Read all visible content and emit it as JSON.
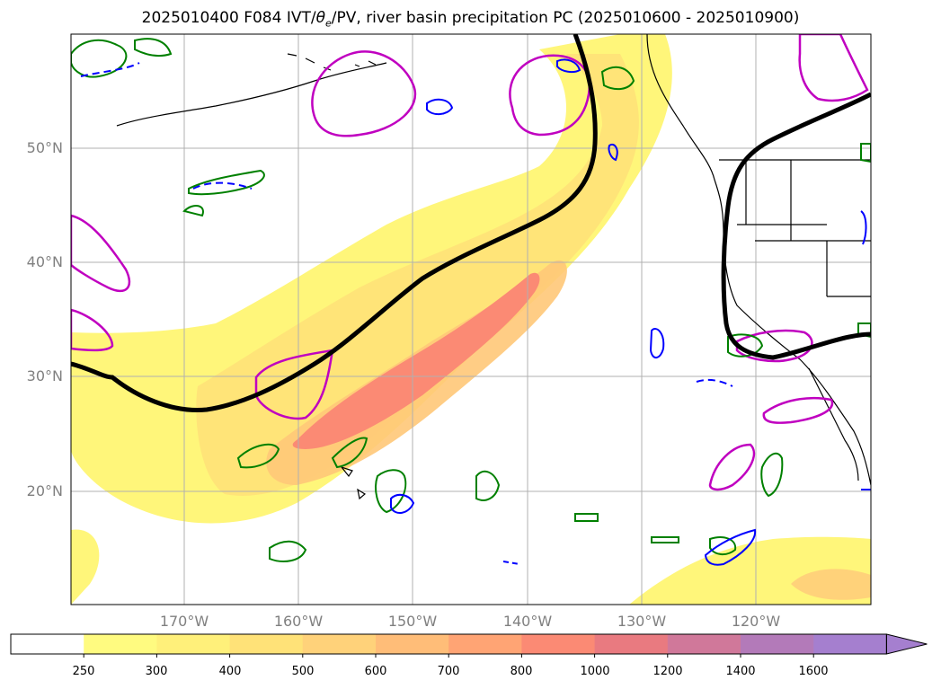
{
  "title": {
    "prefix": "2025010400 F084 IVT/",
    "theta_symbol": "θ",
    "theta_sub": "e",
    "suffix": "/PV, river basin precipitation PC (2025010600 - 2025010900)"
  },
  "lat_labels": [
    "50°N",
    "40°N",
    "30°N",
    "20°N"
  ],
  "lon_labels": [
    "170°W",
    "160°W",
    "150°W",
    "140°W",
    "130°W",
    "120°W"
  ],
  "colorbar": {
    "levels": [
      "250",
      "300",
      "400",
      "500",
      "600",
      "700",
      "800",
      "1000",
      "1200",
      "1400",
      "1600"
    ],
    "colors": [
      "#ffffff",
      "#fffb80",
      "#fff07a",
      "#ffe278",
      "#ffd27a",
      "#ffbd78",
      "#ffa474",
      "#fb8a74",
      "#e97a80",
      "#d0789a",
      "#b37ab9",
      "#a57fcf"
    ]
  },
  "colors": {
    "ivt_low": "#fff67a",
    "ivt_mid": "#ffd27a",
    "ivt_high": "#f98a74",
    "pv_contour": "#000000",
    "positive_pc": "#c000c0",
    "green_contour": "#008000",
    "blue_contour": "#0000ff",
    "grid": "#b0b0b0"
  }
}
